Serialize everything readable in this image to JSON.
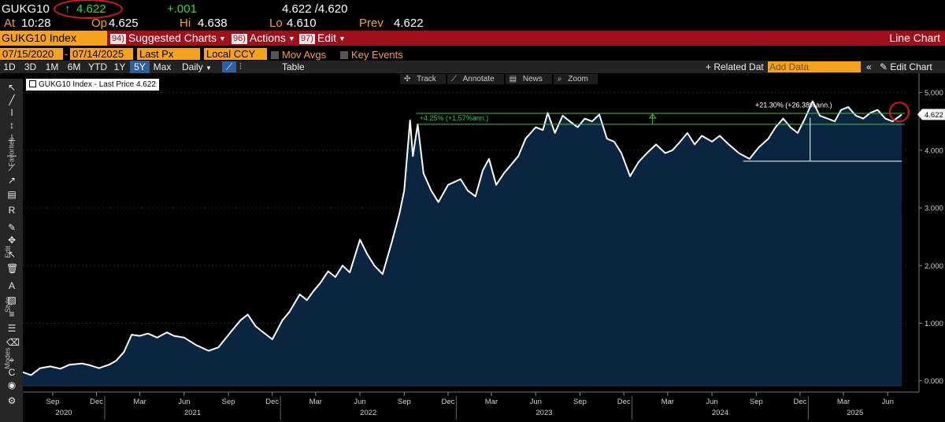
{
  "quote": {
    "ticker": "GUKG10",
    "arrow": "↑",
    "last": "4.622",
    "change": "+.001",
    "bid_ask": "4.622 /4.620",
    "time_label": "At",
    "time": "10:28",
    "open_label": "Op",
    "open": "4.625",
    "high_label": "Hi",
    "high": "4.638",
    "low_label": "Lo",
    "low": "4.610",
    "prev_label": "Prev",
    "prev": "4.622"
  },
  "toolbar": {
    "security": "GUKG10 Index",
    "menus": [
      {
        "num": "94)",
        "label": "Suggested Charts"
      },
      {
        "num": "96)",
        "label": "Actions"
      },
      {
        "num": "97)",
        "label": "Edit"
      }
    ],
    "chart_title": "Line Chart"
  },
  "settings": {
    "start_date": "07/15/2020",
    "end_date": "07/14/2025",
    "field": "Last Px",
    "currency": "Local CCY",
    "mov_avgs": "Mov Avgs",
    "key_events": "Key Events"
  },
  "periods": [
    "1D",
    "3D",
    "1M",
    "6M",
    "YTD",
    "1Y",
    "5Y",
    "Max"
  ],
  "active_period": "5Y",
  "frequency": "Daily",
  "table_label": "Table",
  "related_data": "+ Related Dat",
  "add_data_placeholder": "Add Data",
  "edit_chart": "Edit Chart",
  "chart_tools": [
    "Track",
    "Annotate",
    "News",
    "Zoom"
  ],
  "side_labels": {
    "favorites": "Favorites",
    "edit": "Edit",
    "style": "Style",
    "modes": "Modes"
  },
  "legend": {
    "name": "GUKG10 Index - Last Price",
    "value": "4.622"
  },
  "colors": {
    "line": "#ffffff",
    "area": "#0b2440",
    "accent": "#f7a21b",
    "annotation": "#33cc33",
    "highlight": "#e0161b",
    "toolbar": "#a0101b"
  },
  "chart_data": {
    "type": "area",
    "series": [
      {
        "name": "GUKG10 Index - Last Price",
        "color": "#ffffff"
      }
    ],
    "x_start": "2020-07-15",
    "x_end": "2025-07-14",
    "ylim": [
      -0.1,
      5.2
    ],
    "yticks": [
      "0.000",
      "1.000",
      "2.000",
      "3.000",
      "4.000",
      "5.000"
    ],
    "x_month_ticks": [
      "Sep",
      "Dec",
      "Mar",
      "Jun",
      "Sep",
      "Dec",
      "Mar",
      "Jun",
      "Sep",
      "Dec",
      "Mar",
      "Jun",
      "Sep",
      "Dec",
      "Mar",
      "Jun",
      "Sep",
      "Dec",
      "Mar",
      "Jun"
    ],
    "x_year_labels": [
      "2020",
      "2021",
      "2022",
      "2023",
      "2024",
      "2025"
    ],
    "last_value_label": "4.622",
    "points": [
      [
        "2020-07-15",
        0.15
      ],
      [
        "2020-08-01",
        0.1
      ],
      [
        "2020-08-20",
        0.22
      ],
      [
        "2020-09-10",
        0.25
      ],
      [
        "2020-10-01",
        0.21
      ],
      [
        "2020-10-20",
        0.28
      ],
      [
        "2020-11-15",
        0.3
      ],
      [
        "2020-12-01",
        0.27
      ],
      [
        "2020-12-20",
        0.22
      ],
      [
        "2021-01-10",
        0.28
      ],
      [
        "2021-01-25",
        0.35
      ],
      [
        "2021-02-10",
        0.5
      ],
      [
        "2021-02-26",
        0.8
      ],
      [
        "2021-03-15",
        0.78
      ],
      [
        "2021-04-01",
        0.82
      ],
      [
        "2021-04-20",
        0.75
      ],
      [
        "2021-05-10",
        0.84
      ],
      [
        "2021-05-25",
        0.78
      ],
      [
        "2021-06-15",
        0.75
      ],
      [
        "2021-07-10",
        0.62
      ],
      [
        "2021-08-05",
        0.52
      ],
      [
        "2021-08-25",
        0.58
      ],
      [
        "2021-09-20",
        0.85
      ],
      [
        "2021-10-10",
        1.05
      ],
      [
        "2021-10-25",
        1.15
      ],
      [
        "2021-11-10",
        0.95
      ],
      [
        "2021-11-25",
        0.85
      ],
      [
        "2021-12-15",
        0.72
      ],
      [
        "2022-01-05",
        1.05
      ],
      [
        "2022-01-20",
        1.2
      ],
      [
        "2022-02-10",
        1.5
      ],
      [
        "2022-02-25",
        1.4
      ],
      [
        "2022-03-10",
        1.55
      ],
      [
        "2022-03-25",
        1.7
      ],
      [
        "2022-04-10",
        1.9
      ],
      [
        "2022-04-25",
        1.8
      ],
      [
        "2022-05-10",
        2.0
      ],
      [
        "2022-05-25",
        1.88
      ],
      [
        "2022-06-15",
        2.45
      ],
      [
        "2022-06-30",
        2.2
      ],
      [
        "2022-07-15",
        2.0
      ],
      [
        "2022-08-01",
        1.85
      ],
      [
        "2022-08-20",
        2.4
      ],
      [
        "2022-09-05",
        2.9
      ],
      [
        "2022-09-15",
        3.3
      ],
      [
        "2022-09-27",
        4.52
      ],
      [
        "2022-10-03",
        3.9
      ],
      [
        "2022-10-13",
        4.45
      ],
      [
        "2022-10-25",
        3.6
      ],
      [
        "2022-11-10",
        3.3
      ],
      [
        "2022-11-25",
        3.1
      ],
      [
        "2022-12-15",
        3.4
      ],
      [
        "2023-01-10",
        3.5
      ],
      [
        "2023-01-25",
        3.3
      ],
      [
        "2023-02-10",
        3.2
      ],
      [
        "2023-02-25",
        3.65
      ],
      [
        "2023-03-10",
        3.85
      ],
      [
        "2023-03-25",
        3.4
      ],
      [
        "2023-04-10",
        3.6
      ],
      [
        "2023-04-25",
        3.75
      ],
      [
        "2023-05-10",
        3.9
      ],
      [
        "2023-05-25",
        4.2
      ],
      [
        "2023-06-15",
        4.4
      ],
      [
        "2023-06-30",
        4.35
      ],
      [
        "2023-07-10",
        4.65
      ],
      [
        "2023-07-25",
        4.3
      ],
      [
        "2023-08-10",
        4.6
      ],
      [
        "2023-08-25",
        4.5
      ],
      [
        "2023-09-10",
        4.4
      ],
      [
        "2023-09-25",
        4.55
      ],
      [
        "2023-10-10",
        4.5
      ],
      [
        "2023-10-25",
        4.62
      ],
      [
        "2023-11-10",
        4.2
      ],
      [
        "2023-11-25",
        4.15
      ],
      [
        "2023-12-10",
        3.95
      ],
      [
        "2023-12-28",
        3.55
      ],
      [
        "2024-01-15",
        3.8
      ],
      [
        "2024-02-01",
        3.95
      ],
      [
        "2024-02-20",
        4.1
      ],
      [
        "2024-03-10",
        3.95
      ],
      [
        "2024-03-25",
        4.0
      ],
      [
        "2024-04-10",
        4.15
      ],
      [
        "2024-04-25",
        4.3
      ],
      [
        "2024-05-10",
        4.1
      ],
      [
        "2024-05-25",
        4.25
      ],
      [
        "2024-06-15",
        4.15
      ],
      [
        "2024-07-01",
        4.25
      ],
      [
        "2024-07-20",
        4.1
      ],
      [
        "2024-08-10",
        3.95
      ],
      [
        "2024-09-01",
        3.85
      ],
      [
        "2024-09-20",
        4.05
      ],
      [
        "2024-10-10",
        4.2
      ],
      [
        "2024-10-25",
        4.4
      ],
      [
        "2024-11-10",
        4.55
      ],
      [
        "2024-11-25",
        4.4
      ],
      [
        "2024-12-10",
        4.3
      ],
      [
        "2024-12-25",
        4.55
      ],
      [
        "2025-01-10",
        4.85
      ],
      [
        "2025-01-25",
        4.6
      ],
      [
        "2025-02-10",
        4.55
      ],
      [
        "2025-02-25",
        4.5
      ],
      [
        "2025-03-10",
        4.7
      ],
      [
        "2025-03-25",
        4.75
      ],
      [
        "2025-04-10",
        4.6
      ],
      [
        "2025-04-25",
        4.55
      ],
      [
        "2025-05-10",
        4.65
      ],
      [
        "2025-05-25",
        4.7
      ],
      [
        "2025-06-10",
        4.55
      ],
      [
        "2025-06-25",
        4.5
      ],
      [
        "2025-07-14",
        4.62
      ]
    ],
    "annotations": [
      {
        "label": "+4.25% (+1.57%ann.)",
        "from": "2022-09-27",
        "to": "2025-07-14",
        "low": 4.45,
        "high": 4.64
      },
      {
        "label": "+21.30% (+26.38%ann.)",
        "from": "2024-09-01",
        "to": "2025-07-14",
        "low": 3.81,
        "high": 4.62
      }
    ]
  }
}
